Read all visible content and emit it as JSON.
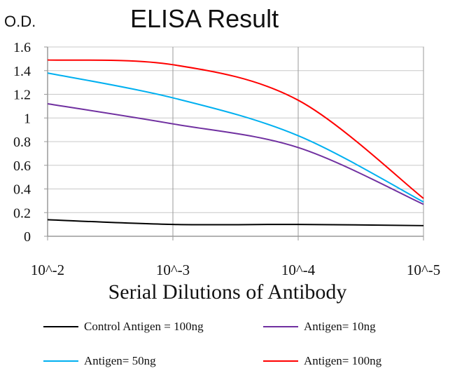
{
  "chart_data": {
    "type": "line",
    "title": "ELISA Result",
    "ylabel": "O.D.",
    "xlabel": "Serial Dilutions of Antibody",
    "ylim": [
      0,
      1.6
    ],
    "yticks": [
      "0",
      "0.2",
      "0.4",
      "0.6",
      "0.8",
      "1",
      "1.2",
      "1.4",
      "1.6"
    ],
    "categories": [
      "10^-2",
      "10^-3",
      "10^-4",
      "10^-5"
    ],
    "grid": "vertical and horizontal",
    "legend_position": "bottom",
    "series": [
      {
        "name": "Control Antigen = 100ng",
        "color": "#000000",
        "values": [
          0.14,
          0.1,
          0.1,
          0.09
        ]
      },
      {
        "name": "Antigen= 10ng",
        "color": "#7030a0",
        "values": [
          1.12,
          0.95,
          0.75,
          0.27
        ]
      },
      {
        "name": "Antigen= 50ng",
        "color": "#00b0f0",
        "values": [
          1.38,
          1.17,
          0.85,
          0.29
        ]
      },
      {
        "name": "Antigen= 100ng",
        "color": "#ff0000",
        "values": [
          1.49,
          1.45,
          1.15,
          0.32
        ]
      }
    ]
  }
}
